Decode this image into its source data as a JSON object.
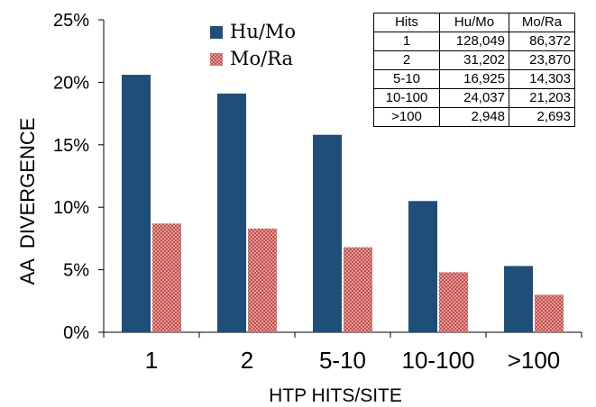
{
  "chart_data": {
    "type": "bar",
    "categories": [
      "1",
      "2",
      "5-10",
      "10-100",
      ">100"
    ],
    "series": [
      {
        "name": "Hu/Mo",
        "values": [
          20.6,
          19.1,
          15.8,
          10.5,
          5.3
        ],
        "color": "#1f4e79"
      },
      {
        "name": "Mo/Ra",
        "values": [
          8.7,
          8.3,
          6.8,
          4.8,
          3.0
        ],
        "color": "#c0504d"
      }
    ],
    "xlabel": "HTP HITS/SITE",
    "ylabel": "AA  DIVERGENCE",
    "ylim": [
      0,
      25
    ],
    "yticks": [
      "0%",
      "5%",
      "10%",
      "15%",
      "20%",
      "25%"
    ],
    "grid": false,
    "legend_position": "top-center",
    "table": {
      "headers": [
        "Hits",
        "Hu/Mo",
        "Mo/Ra"
      ],
      "rows": [
        [
          "1",
          "128,049",
          "86,372"
        ],
        [
          "2",
          "31,202",
          "23,870"
        ],
        [
          "5-10",
          "16,925",
          "14,303"
        ],
        [
          "10-100",
          "24,037",
          "21,203"
        ],
        [
          ">100",
          "2,948",
          "2,693"
        ]
      ]
    }
  }
}
